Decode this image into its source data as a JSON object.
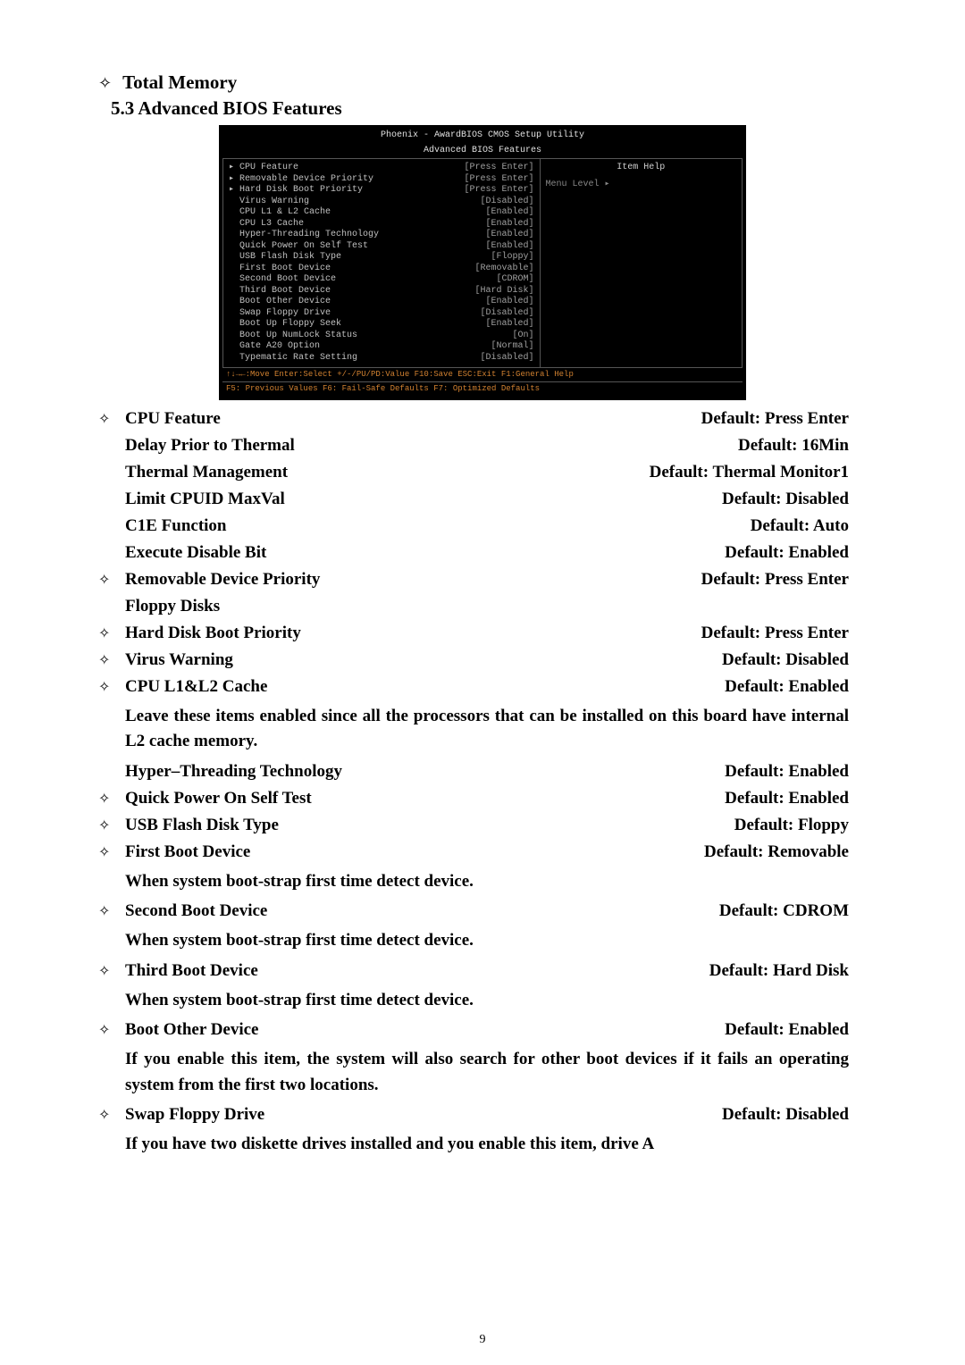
{
  "header1": {
    "label": "Total Memory"
  },
  "header2": {
    "label": "5.3 Advanced BIOS Features"
  },
  "bios": {
    "title1": "Phoenix - AwardBIOS CMOS Setup Utility",
    "title2": "Advanced BIOS Features",
    "help_title": "Item Help",
    "menu_level": "Menu Level   ▸",
    "rows": [
      {
        "l": "▸ CPU Feature",
        "v": "[Press Enter]"
      },
      {
        "l": "▸ Removable Device Priority",
        "v": "[Press Enter]"
      },
      {
        "l": "▸ Hard Disk Boot Priority",
        "v": "[Press Enter]"
      },
      {
        "l": "  Virus Warning",
        "v": "[Disabled]"
      },
      {
        "l": "  CPU L1 & L2 Cache",
        "v": "[Enabled]"
      },
      {
        "l": "  CPU L3 Cache",
        "v": "[Enabled]"
      },
      {
        "l": "  Hyper-Threading Technology",
        "v": "[Enabled]"
      },
      {
        "l": "  Quick Power On Self Test",
        "v": "[Enabled]"
      },
      {
        "l": "  USB Flash Disk Type",
        "v": "[Floppy]"
      },
      {
        "l": "  First Boot Device",
        "v": "[Removable]"
      },
      {
        "l": "  Second Boot Device",
        "v": "[CDROM]"
      },
      {
        "l": "  Third Boot Device",
        "v": "[Hard Disk]"
      },
      {
        "l": "  Boot Other Device",
        "v": "[Enabled]"
      },
      {
        "l": "  Swap Floppy Drive",
        "v": "[Disabled]"
      },
      {
        "l": "  Boot Up Floppy Seek",
        "v": "[Enabled]"
      },
      {
        "l": "  Boot Up NumLock Status",
        "v": "[On]"
      },
      {
        "l": "  Gate A20 Option",
        "v": "[Normal]"
      },
      {
        "l": "  Typematic Rate Setting",
        "v": "[Disabled]"
      }
    ],
    "footer1": "↑↓→←:Move  Enter:Select  +/-/PU/PD:Value  F10:Save   ESC:Exit  F1:General Help",
    "footer2": "    F5: Previous Values    F6: Fail-Safe Defaults   F7: Optimized Defaults"
  },
  "features": [
    {
      "bullet": true,
      "name": "CPU Feature",
      "def": "Default: Press Enter"
    },
    {
      "bullet": false,
      "name": "Delay Prior to Thermal",
      "def": "Default: 16Min"
    },
    {
      "bullet": false,
      "name": "Thermal Management",
      "def": "Default: Thermal Monitor1"
    },
    {
      "bullet": false,
      "name": "Limit CPUID MaxVal",
      "def": "Default: Disabled"
    },
    {
      "bullet": false,
      "name": "C1E Function",
      "def": "Default: Auto"
    },
    {
      "bullet": false,
      "name": "Execute Disable Bit",
      "def": "Default: Enabled"
    },
    {
      "bullet": true,
      "name": "Removable Device Priority",
      "def": "Default: Press Enter"
    },
    {
      "bullet": false,
      "name": "Floppy Disks",
      "def": ""
    },
    {
      "bullet": true,
      "name": "Hard Disk Boot Priority",
      "def": "Default: Press Enter"
    },
    {
      "bullet": true,
      "name": "Virus Warning",
      "def": "Default: Disabled"
    },
    {
      "bullet": true,
      "name": "CPU L1&L2 Cache",
      "def": "Default: Enabled"
    }
  ],
  "desc_cache": "Leave these items enabled since all the processors that can be installed on this board have internal L2 cache memory.",
  "features2": [
    {
      "bullet": false,
      "name": "Hyper–Threading Technology",
      "def": "Default: Enabled"
    },
    {
      "bullet": true,
      "name": "Quick Power On Self Test",
      "def": "Default: Enabled"
    },
    {
      "bullet": true,
      "name": "USB Flash Disk Type",
      "def": "Default: Floppy"
    },
    {
      "bullet": true,
      "name": "First Boot Device",
      "def": "Default: Removable"
    }
  ],
  "desc_first": "When system boot-strap first time detect device.",
  "features3": [
    {
      "bullet": true,
      "name": "Second Boot Device",
      "def": "Default: CDROM"
    }
  ],
  "desc_second": "When system boot-strap first time detect device.",
  "features4": [
    {
      "bullet": true,
      "name": "Third Boot Device",
      "def": "Default: Hard Disk"
    }
  ],
  "desc_third": "When system boot-strap first time detect device.",
  "features5": [
    {
      "bullet": true,
      "name": "Boot Other Device",
      "def": "Default: Enabled"
    }
  ],
  "desc_other": "If you enable this item, the system will also search for other boot devices if it fails an operating system from the first two locations.",
  "features6": [
    {
      "bullet": true,
      "name": "Swap Floppy Drive",
      "def": "Default: Disabled"
    }
  ],
  "desc_swap": "If you have two diskette drives installed and you enable this item, drive A",
  "page_num": "9",
  "diamond": "✧"
}
